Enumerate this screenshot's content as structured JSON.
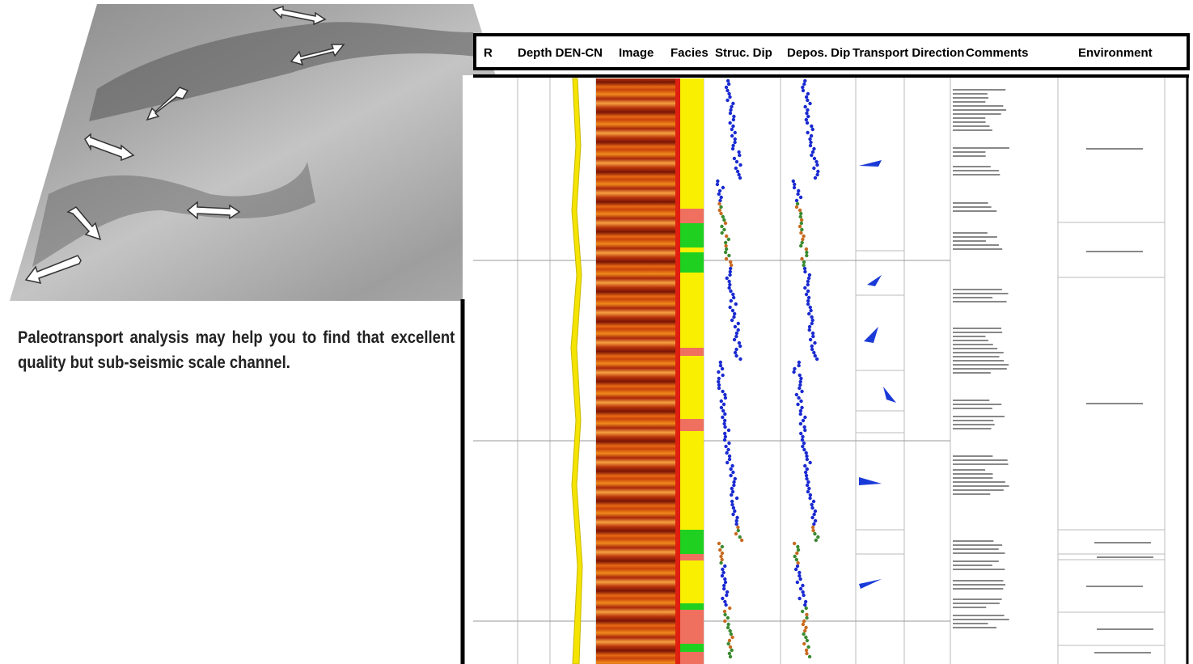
{
  "caption": "Paleotransport analysis may help you to find that excellent quality but sub-seismic scale channel.",
  "log_panel": {
    "headers": [
      "R",
      "Depth DEN-CN",
      "Image",
      "Facies",
      "Struc. Dip",
      "Depos. Dip",
      "Transport Direction",
      "Comments",
      "Environment"
    ]
  }
}
